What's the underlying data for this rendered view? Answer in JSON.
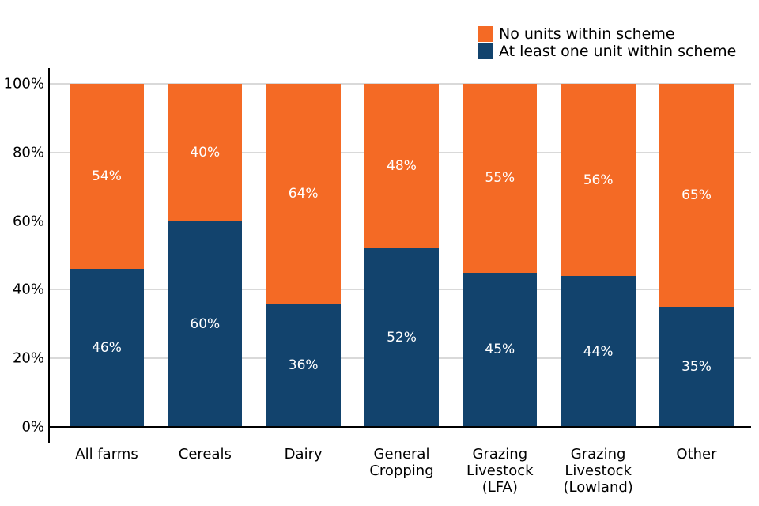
{
  "legend": {
    "items": [
      {
        "label": "No units within scheme",
        "color": "#F46A25"
      },
      {
        "label": "At least one unit within scheme",
        "color": "#12436D"
      }
    ]
  },
  "y_axis": {
    "tick_labels": [
      "0%",
      "20%",
      "40%",
      "60%",
      "80%",
      "100%"
    ],
    "tick_values": [
      0,
      20,
      40,
      60,
      80,
      100
    ]
  },
  "chart_data": {
    "type": "bar",
    "stacked": true,
    "title": "",
    "xlabel": "",
    "ylabel": "",
    "ylim": [
      0,
      100
    ],
    "grid": true,
    "legend_position": "top-right",
    "categories": [
      "All farms",
      "Cereals",
      "Dairy",
      "General Cropping",
      "Grazing Livestock (LFA)",
      "Grazing Livestock (Lowland)",
      "Other"
    ],
    "series": [
      {
        "name": "No units within scheme",
        "color": "#F46A25",
        "position": "top",
        "values": [
          54,
          40,
          64,
          48,
          55,
          56,
          65
        ],
        "labels": [
          "54%",
          "40%",
          "64%",
          "48%",
          "55%",
          "56%",
          "65%"
        ]
      },
      {
        "name": "At least one unit within scheme",
        "color": "#12436D",
        "position": "bottom",
        "values": [
          46,
          60,
          36,
          52,
          45,
          44,
          35
        ],
        "labels": [
          "46%",
          "60%",
          "36%",
          "52%",
          "45%",
          "44%",
          "35%"
        ]
      }
    ],
    "value_label_color": "#FFFFFF"
  },
  "colors": {
    "axis": "#000000",
    "grid": "#D9D9D9",
    "background": "#FFFFFF",
    "text": "#000000"
  }
}
